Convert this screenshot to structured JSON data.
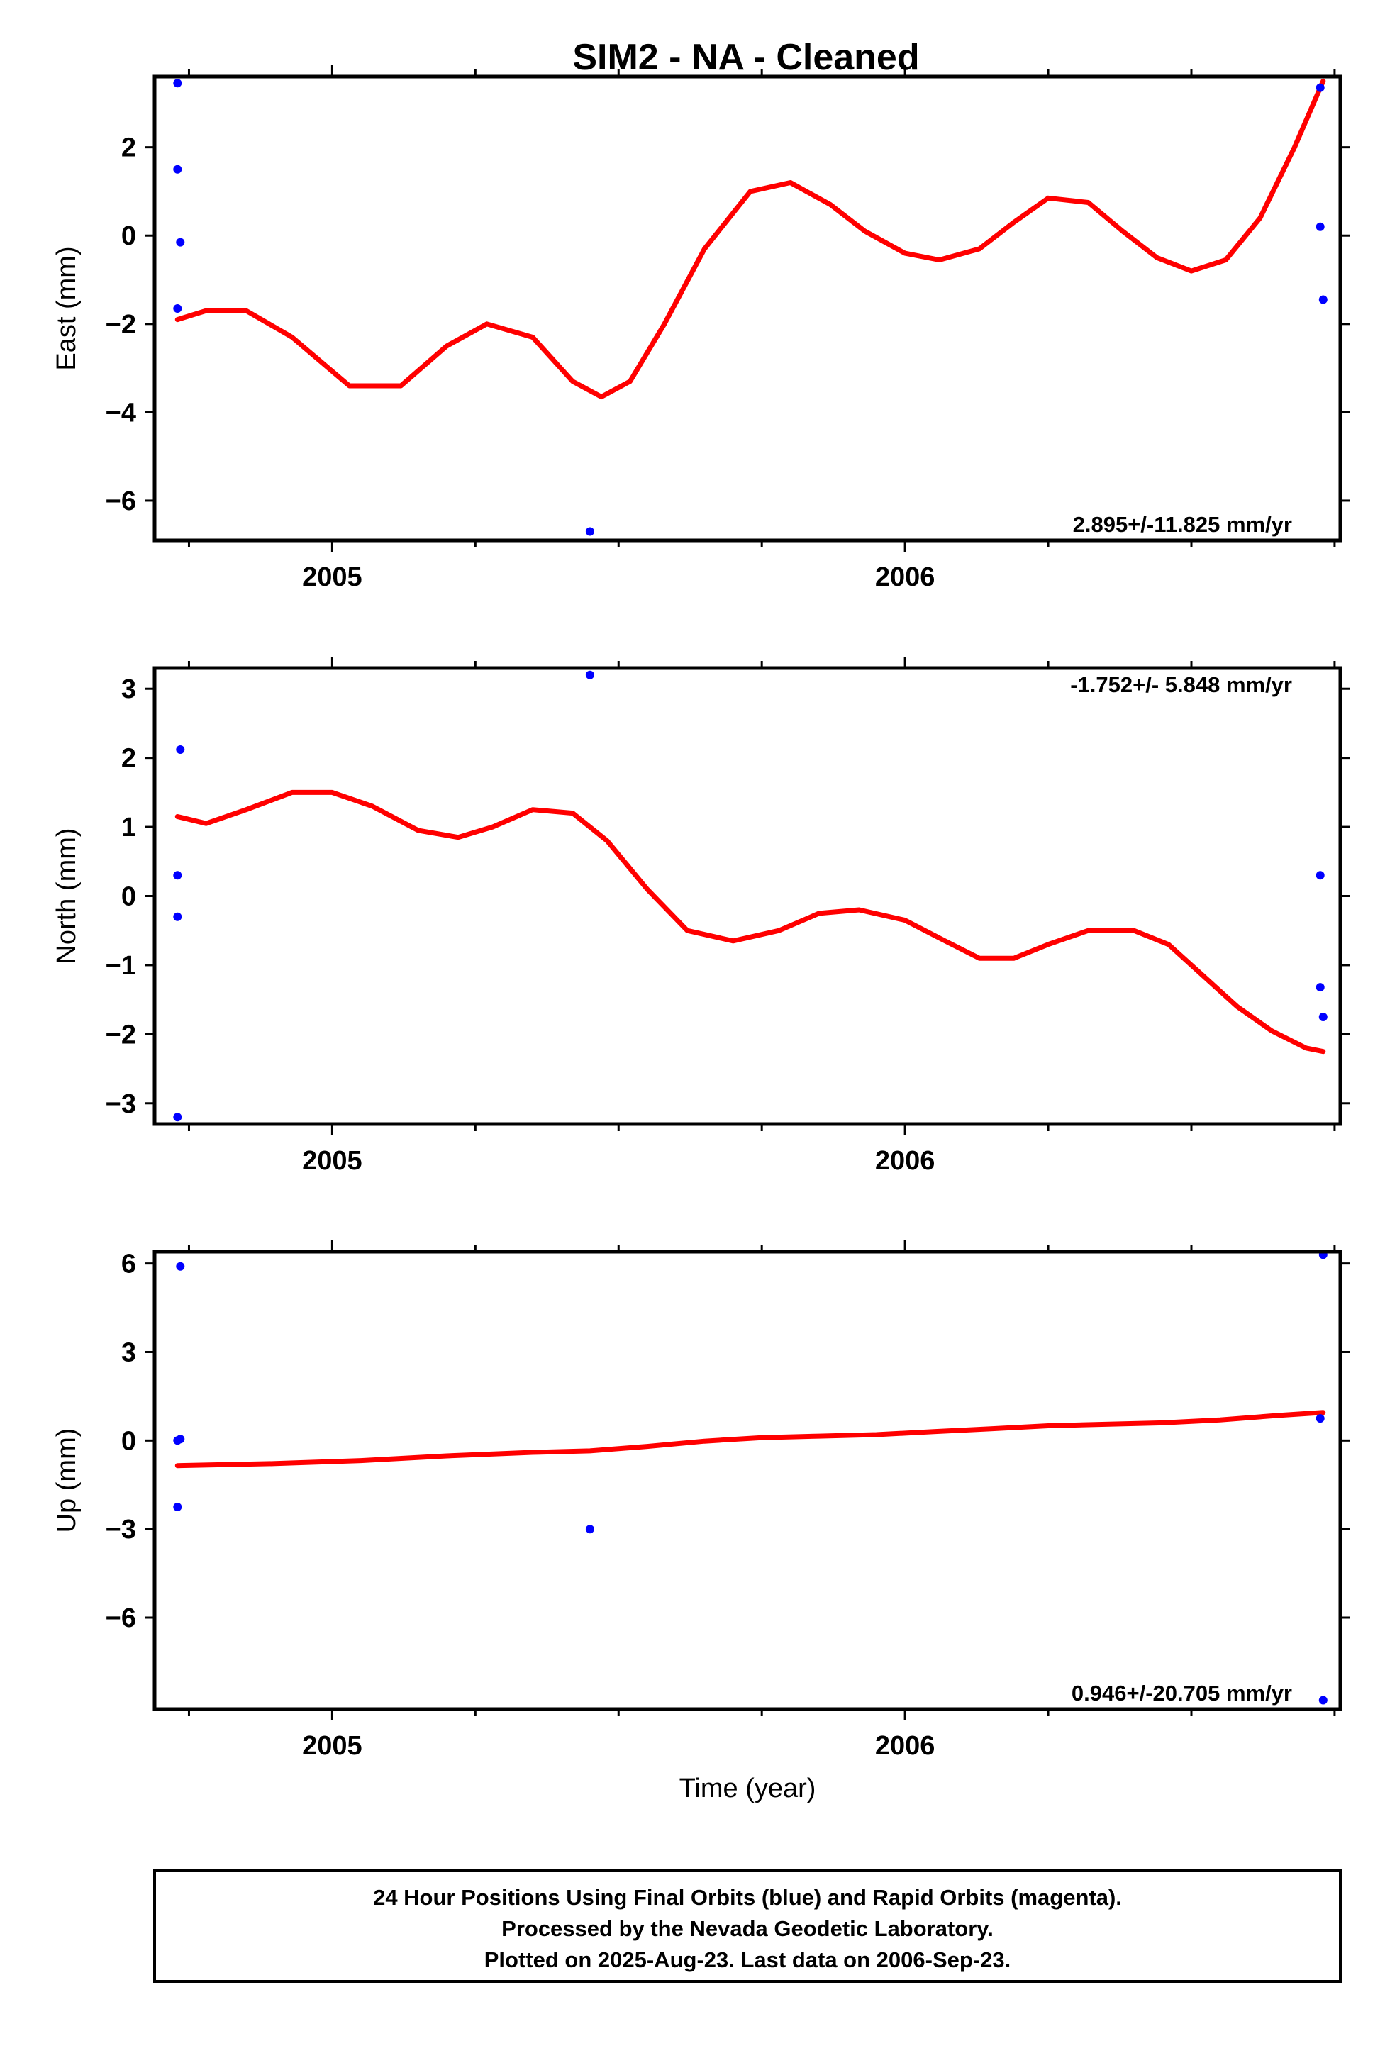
{
  "title": "SIM2  - NA - Cleaned",
  "colors": {
    "final_orbits": "#0000ff",
    "fit_line": "#ff0000",
    "axes": "#000000"
  },
  "chart_data": [
    {
      "type": "scatter",
      "ylabel": "East (mm)",
      "xlabel": "",
      "xlim": [
        2004.69,
        2006.76
      ],
      "ylim": [
        -6.9,
        3.6
      ],
      "yticks": [
        2,
        0,
        -2,
        -4,
        -6
      ],
      "xticks": [
        2005,
        2006
      ],
      "rate_label": "2.895+/-11.825 mm/yr",
      "rate_position": "bottom-right",
      "points": {
        "x": [
          2004.73,
          2004.73,
          2004.735,
          2004.73,
          2005.45,
          2006.725,
          2006.725,
          2006.73
        ],
        "y": [
          3.45,
          1.5,
          -0.15,
          -1.65,
          -6.7,
          3.35,
          0.2,
          -1.45
        ]
      },
      "fit": {
        "x": [
          2004.73,
          2004.78,
          2004.85,
          2004.93,
          2005.03,
          2005.12,
          2005.2,
          2005.27,
          2005.35,
          2005.42,
          2005.47,
          2005.52,
          2005.58,
          2005.65,
          2005.73,
          2005.8,
          2005.87,
          2005.93,
          2006.0,
          2006.06,
          2006.13,
          2006.19,
          2006.25,
          2006.32,
          2006.38,
          2006.44,
          2006.5,
          2006.56,
          2006.62,
          2006.68,
          2006.73
        ],
        "y": [
          -1.9,
          -1.7,
          -1.7,
          -2.3,
          -3.4,
          -3.4,
          -2.5,
          -2.0,
          -2.3,
          -3.3,
          -3.65,
          -3.3,
          -2.0,
          -0.3,
          1.0,
          1.2,
          0.7,
          0.1,
          -0.4,
          -0.55,
          -0.3,
          0.3,
          0.85,
          0.75,
          0.1,
          -0.5,
          -0.8,
          -0.55,
          0.4,
          2.0,
          3.5
        ]
      }
    },
    {
      "type": "scatter",
      "ylabel": "North (mm)",
      "xlabel": "",
      "xlim": [
        2004.69,
        2006.76
      ],
      "ylim": [
        -3.3,
        3.3
      ],
      "yticks": [
        3,
        2,
        1,
        0,
        -1,
        -2,
        -3
      ],
      "xticks": [
        2005,
        2006
      ],
      "rate_label": "-1.752+/- 5.848 mm/yr",
      "rate_position": "top-right",
      "points": {
        "x": [
          2005.45,
          2004.735,
          2004.73,
          2004.73,
          2004.73,
          2006.725,
          2006.725,
          2006.73
        ],
        "y": [
          3.2,
          2.12,
          0.3,
          -0.3,
          -3.2,
          0.3,
          -1.32,
          -1.75
        ]
      },
      "fit": {
        "x": [
          2004.73,
          2004.78,
          2004.85,
          2004.93,
          2005.0,
          2005.07,
          2005.15,
          2005.22,
          2005.28,
          2005.35,
          2005.42,
          2005.48,
          2005.55,
          2005.62,
          2005.7,
          2005.78,
          2005.85,
          2005.92,
          2006.0,
          2006.07,
          2006.13,
          2006.19,
          2006.25,
          2006.32,
          2006.4,
          2006.46,
          2006.52,
          2006.58,
          2006.64,
          2006.7,
          2006.73
        ],
        "y": [
          1.15,
          1.05,
          1.25,
          1.5,
          1.5,
          1.3,
          0.95,
          0.85,
          1.0,
          1.25,
          1.2,
          0.8,
          0.1,
          -0.5,
          -0.65,
          -0.5,
          -0.25,
          -0.2,
          -0.35,
          -0.65,
          -0.9,
          -0.9,
          -0.7,
          -0.5,
          -0.5,
          -0.7,
          -1.15,
          -1.6,
          -1.95,
          -2.2,
          -2.25
        ]
      }
    },
    {
      "type": "scatter",
      "ylabel": "Up (mm)",
      "xlabel": "Time (year)",
      "xlim": [
        2004.69,
        2006.76
      ],
      "ylim": [
        -9.1,
        6.4
      ],
      "yticks": [
        6,
        3,
        0,
        -3,
        -6
      ],
      "xticks": [
        2005,
        2006
      ],
      "rate_label": "0.946+/-20.705 mm/yr",
      "rate_position": "bottom-right",
      "points": {
        "x": [
          2004.735,
          2004.73,
          2004.735,
          2004.73,
          2005.45,
          2006.73,
          2006.725,
          2006.73
        ],
        "y": [
          5.9,
          0.0,
          0.05,
          -2.25,
          -3.0,
          6.3,
          0.75,
          -8.8
        ]
      },
      "fit": {
        "x": [
          2004.73,
          2004.9,
          2005.05,
          2005.2,
          2005.35,
          2005.45,
          2005.55,
          2005.65,
          2005.75,
          2005.85,
          2005.95,
          2006.05,
          2006.15,
          2006.25,
          2006.35,
          2006.45,
          2006.55,
          2006.65,
          2006.73
        ],
        "y": [
          -0.85,
          -0.78,
          -0.68,
          -0.52,
          -0.4,
          -0.35,
          -0.2,
          -0.02,
          0.1,
          0.15,
          0.2,
          0.3,
          0.4,
          0.5,
          0.55,
          0.6,
          0.7,
          0.85,
          0.95
        ]
      }
    }
  ],
  "footer": {
    "line1": "24 Hour Positions Using Final Orbits (blue) and Rapid Orbits (magenta).",
    "line2": "Processed by the Nevada Geodetic Laboratory.",
    "line3": "Plotted on 2025-Aug-23. Last data on 2006-Sep-23."
  }
}
